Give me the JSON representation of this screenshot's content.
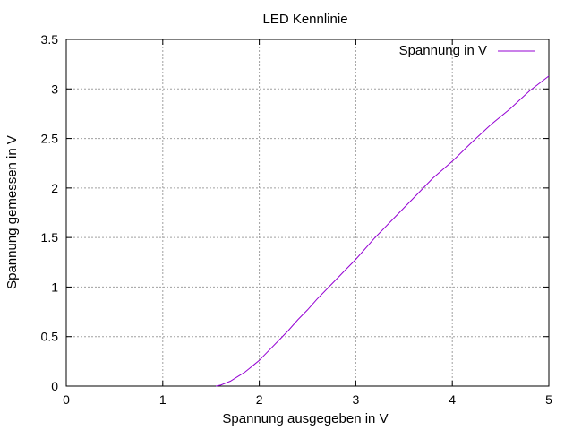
{
  "chart_data": {
    "type": "line",
    "title": "LED Kennlinie",
    "xlabel": "Spannung ausgegeben in V",
    "ylabel": "Spannung gemessen in V",
    "xlim": [
      0,
      5
    ],
    "ylim": [
      0,
      3.5
    ],
    "xticks": [
      0,
      1,
      2,
      3,
      4,
      5
    ],
    "xtick_labels": [
      "0",
      "1",
      "2",
      "3",
      "4",
      "5"
    ],
    "yticks": [
      0,
      0.5,
      1,
      1.5,
      2,
      2.5,
      3,
      3.5
    ],
    "ytick_labels": [
      "0",
      "0.5",
      "1",
      "1.5",
      "2",
      "2.5",
      "3",
      "3.5"
    ],
    "grid": true,
    "legend_position": "top-right",
    "series": [
      {
        "name": "Spannung in V",
        "color": "#9400d3",
        "x": [
          1.55,
          1.6,
          1.65,
          1.7,
          1.75,
          1.8,
          1.85,
          1.9,
          1.95,
          2.0,
          2.05,
          2.1,
          2.2,
          2.3,
          2.4,
          2.5,
          2.6,
          2.7,
          2.8,
          2.9,
          3.0,
          3.2,
          3.4,
          3.6,
          3.8,
          4.0,
          4.2,
          4.4,
          4.6,
          4.8,
          5.0
        ],
        "y": [
          0.0,
          0.01,
          0.03,
          0.05,
          0.08,
          0.11,
          0.14,
          0.18,
          0.22,
          0.26,
          0.31,
          0.36,
          0.46,
          0.56,
          0.67,
          0.77,
          0.88,
          0.98,
          1.08,
          1.18,
          1.28,
          1.5,
          1.7,
          1.9,
          2.1,
          2.27,
          2.46,
          2.64,
          2.8,
          2.98,
          3.13
        ]
      }
    ]
  }
}
